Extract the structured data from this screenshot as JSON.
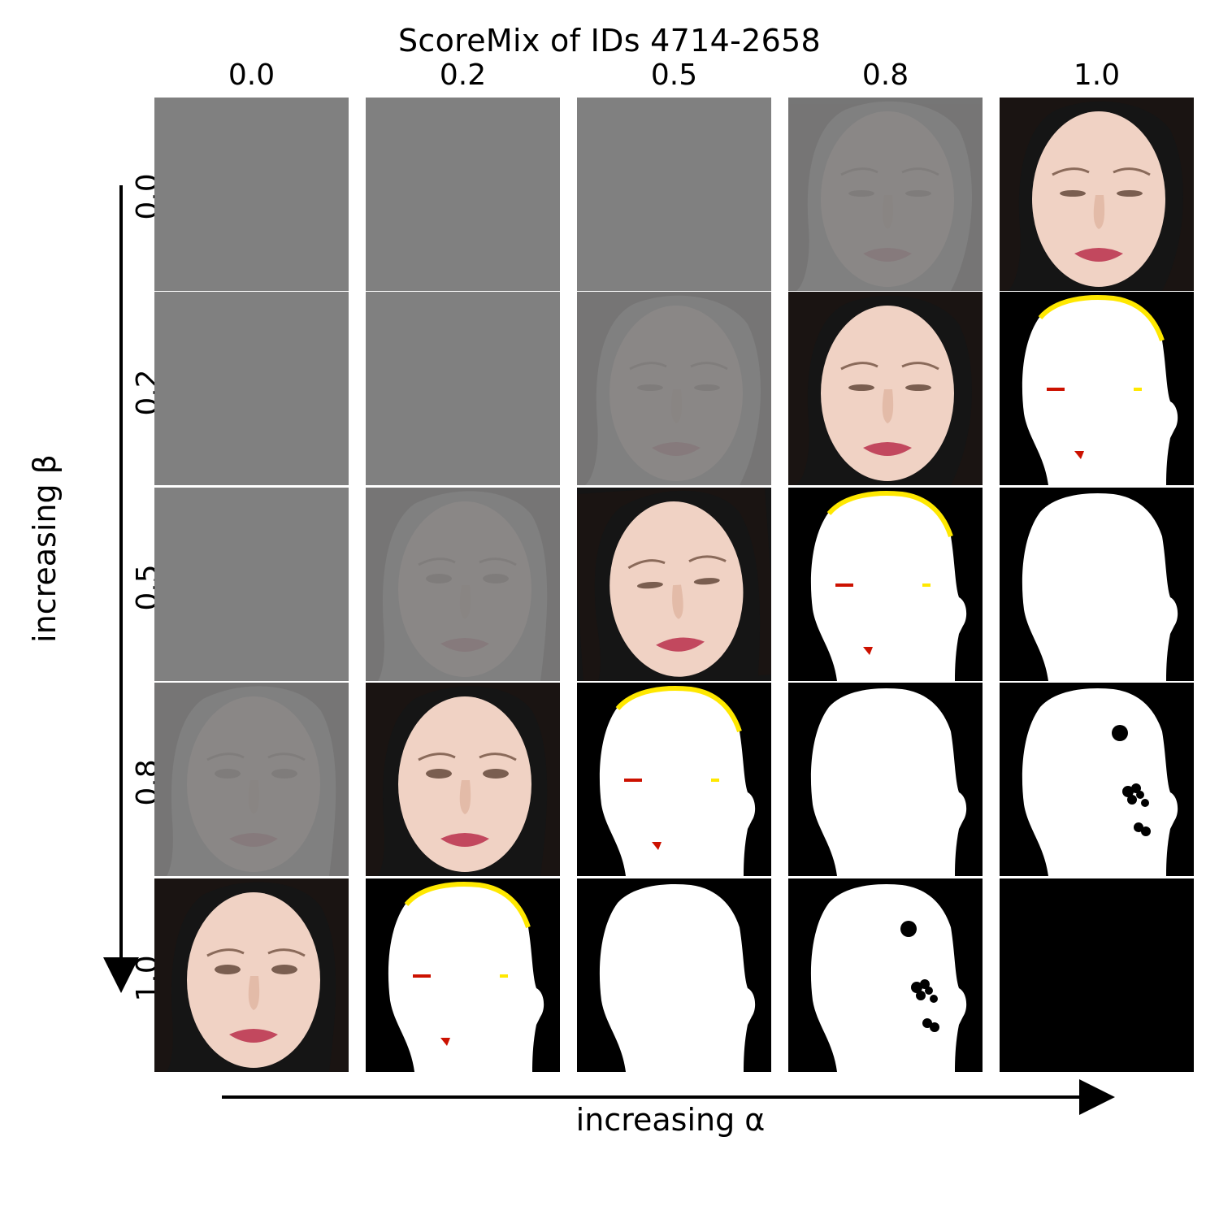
{
  "chart_data": {
    "type": "image_grid",
    "title": "ScoreMix of IDs 4714-2658",
    "xlabel": "increasing α",
    "ylabel": "increasing β",
    "x_param": "alpha",
    "y_param": "beta",
    "column_labels": [
      "0.0",
      "0.2",
      "0.5",
      "0.8",
      "1.0"
    ],
    "row_labels": [
      "0.0",
      "0.2",
      "0.5",
      "0.8",
      "1.0"
    ],
    "rows": 5,
    "cols": 5,
    "cells": [
      [
        "gray",
        "gray",
        "gray",
        "faded-face-a",
        "face-a"
      ],
      [
        "gray",
        "gray",
        "faded-face-a",
        "face-a",
        "mask-fringe"
      ],
      [
        "gray",
        "faded-face-b",
        "face-c",
        "mask-fringe",
        "mask-clean"
      ],
      [
        "faded-face-b",
        "face-b",
        "mask-fringe",
        "mask-clean",
        "mask-spots"
      ],
      [
        "face-b",
        "mask-fringe",
        "mask-clean",
        "mask-spots",
        "black"
      ]
    ],
    "legend": [],
    "grid": false
  },
  "colors": {
    "gray_fill": "#808080",
    "mask_white": "#ffffff",
    "mask_bg": "#000000",
    "fringe_yellow": "#ffe800",
    "fringe_red": "#cc1100",
    "lip": "#c2485e",
    "skin": "#f0d2c4",
    "hair": "#1a1412"
  }
}
